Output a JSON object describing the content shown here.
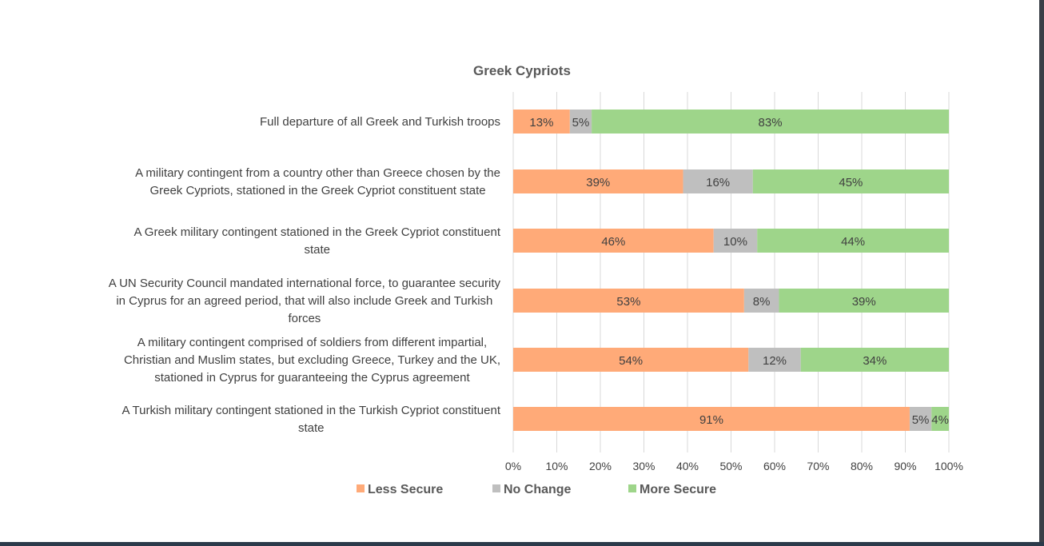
{
  "chart_data": {
    "type": "bar",
    "orientation": "horizontal",
    "stacked": "percent",
    "title": "Greek Cypriots",
    "categories": [
      [
        "Full departure of all Greek and Turkish troops"
      ],
      [
        "A military contingent from a country other than Greece chosen by the",
        "Greek Cypriots, stationed in the Greek Cypriot constituent state"
      ],
      [
        "A Greek military contingent stationed in the Greek Cypriot constituent",
        "state"
      ],
      [
        "A UN Security Council mandated international force, to guarantee security",
        "in Cyprus for an agreed period, that will also include Greek and Turkish",
        "forces"
      ],
      [
        "A military contingent comprised of soldiers from different impartial,",
        "Christian and Muslim states, but excluding Greece, Turkey and the UK,",
        "stationed in Cyprus for guaranteeing the Cyprus agreement"
      ],
      [
        "A Turkish military contingent stationed in the Turkish Cypriot constituent",
        "state"
      ]
    ],
    "series": [
      {
        "name": "Less Secure",
        "color": "#FFAA78",
        "values": [
          13,
          39,
          46,
          53,
          54,
          91
        ]
      },
      {
        "name": "No Change",
        "color": "#BFBFBF",
        "values": [
          5,
          16,
          10,
          8,
          12,
          5
        ]
      },
      {
        "name": "More Secure",
        "color": "#9ED58A",
        "values": [
          83,
          45,
          44,
          39,
          34,
          4
        ]
      }
    ],
    "xlim": [
      0,
      100
    ],
    "xticks": [
      "0%",
      "10%",
      "20%",
      "30%",
      "40%",
      "50%",
      "60%",
      "70%",
      "80%",
      "90%",
      "100%"
    ],
    "grid": true,
    "legend": "bottom"
  }
}
